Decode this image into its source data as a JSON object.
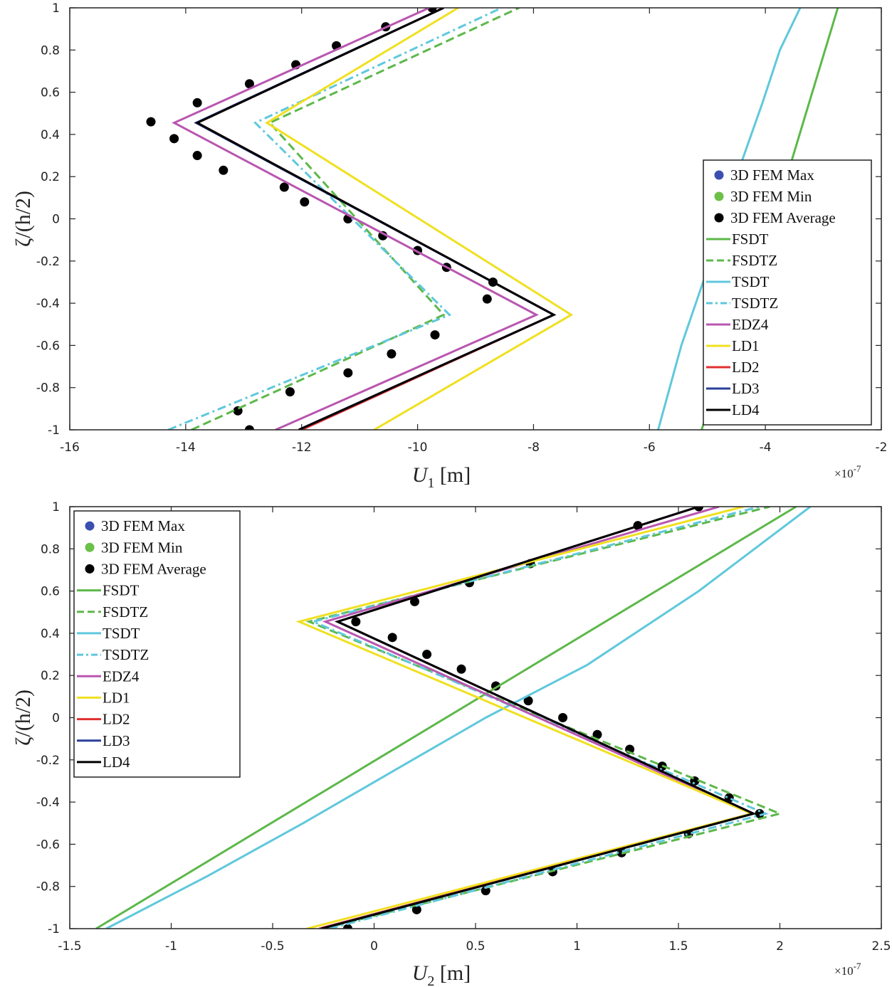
{
  "chart_data": [
    {
      "type": "line",
      "title": "",
      "xlabel": "U",
      "xlabel_sub": "1",
      "xlabel_unit": "[m]",
      "ylabel": "ζ/(h/2)",
      "xlim": [
        -16,
        -2
      ],
      "ylim": [
        -1,
        1
      ],
      "x_ticks": [
        -16,
        -14,
        -12,
        -10,
        -8,
        -6,
        -4,
        -2
      ],
      "y_ticks": [
        -1,
        -0.8,
        -0.6,
        -0.4,
        -0.2,
        0,
        0.2,
        0.4,
        0.6,
        0.8,
        1
      ],
      "x_exponent_base": "×10",
      "x_exponent_power": "-7",
      "legend_position": "right",
      "series": [
        {
          "name": "3D FEM Max",
          "style": "marker",
          "color": "#3a4fb0",
          "x": [],
          "y": []
        },
        {
          "name": "3D FEM Min",
          "style": "marker",
          "color": "#6cc04a",
          "x": [],
          "y": []
        },
        {
          "name": "3D FEM Average",
          "style": "marker",
          "color": "#000000",
          "x": [
            -12.9,
            -13.1,
            -12.2,
            -11.2,
            -10.45,
            -9.7,
            -8.8,
            -8.7,
            -9.5,
            -10.0,
            -10.6,
            -11.2,
            -11.95,
            -12.3,
            -13.35,
            -13.8,
            -14.2,
            -14.6,
            -13.8,
            -12.9,
            -12.1,
            -11.4,
            -10.55,
            -9.75
          ],
          "y": [
            -1,
            -0.91,
            -0.82,
            -0.73,
            -0.64,
            -0.55,
            -0.38,
            -0.3,
            -0.23,
            -0.15,
            -0.08,
            0,
            0.08,
            0.15,
            0.23,
            0.3,
            0.38,
            0.46,
            0.55,
            0.64,
            0.73,
            0.82,
            0.91,
            1
          ]
        },
        {
          "name": "FSDT",
          "style": "solid",
          "color": "#5db84a",
          "x": [
            -5.1,
            -4.5,
            -3.85,
            -3.3,
            -2.75
          ],
          "y": [
            -1,
            -0.5,
            0,
            0.5,
            1
          ]
        },
        {
          "name": "FSDTZ",
          "style": "dash",
          "color": "#5db84a",
          "x": [
            -13.9,
            -9.55,
            -12.55,
            -8.25
          ],
          "y": [
            -1,
            -0.455,
            0.455,
            1
          ]
        },
        {
          "name": "TSDT",
          "style": "solid",
          "color": "#5fc8dc",
          "x": [
            -5.85,
            -5.45,
            -4.95,
            -4.5,
            -4.05,
            -3.75,
            -3.4
          ],
          "y": [
            -1,
            -0.6,
            -0.2,
            0.2,
            0.55,
            0.8,
            1
          ]
        },
        {
          "name": "TSDTZ",
          "style": "dashdot",
          "color": "#5fc8dc",
          "x": [
            -14.3,
            -9.45,
            -12.8,
            -8.55
          ],
          "y": [
            -1,
            -0.455,
            0.455,
            1
          ]
        },
        {
          "name": "EDZ4",
          "style": "solid",
          "color": "#b956b0",
          "x": [
            -12.45,
            -7.95,
            -14.2,
            -9.8
          ],
          "y": [
            -1,
            -0.455,
            0.455,
            1
          ]
        },
        {
          "name": "LD1",
          "style": "solid",
          "color": "#f0e020",
          "x": [
            -10.75,
            -7.35,
            -12.6,
            -9.3
          ],
          "y": [
            -1,
            -0.455,
            0.455,
            1
          ]
        },
        {
          "name": "LD2",
          "style": "solid",
          "color": "#e03030",
          "x": [
            -12.0,
            -7.65,
            -13.8,
            -9.55
          ],
          "y": [
            -1,
            -0.455,
            0.455,
            1
          ]
        },
        {
          "name": "LD3",
          "style": "solid",
          "color": "#2a3f9a",
          "x": [
            -12.05,
            -7.65,
            -13.82,
            -9.55
          ],
          "y": [
            -1,
            -0.455,
            0.455,
            1
          ]
        },
        {
          "name": "LD4",
          "style": "solid",
          "color": "#000000",
          "x": [
            -12.05,
            -7.65,
            -13.8,
            -9.55
          ],
          "y": [
            -1,
            -0.455,
            0.455,
            1
          ]
        }
      ]
    },
    {
      "type": "line",
      "title": "",
      "xlabel": "U",
      "xlabel_sub": "2",
      "xlabel_unit": "[m]",
      "ylabel": "ζ/(h/2)",
      "xlim": [
        -1.5,
        2.5
      ],
      "ylim": [
        -1,
        1
      ],
      "x_ticks": [
        -1.5,
        -1,
        -0.5,
        0,
        0.5,
        1,
        1.5,
        2,
        2.5
      ],
      "y_ticks": [
        -1,
        -0.8,
        -0.6,
        -0.4,
        -0.2,
        0,
        0.2,
        0.4,
        0.6,
        0.8,
        1
      ],
      "x_exponent_base": "×10",
      "x_exponent_power": "-7",
      "legend_position": "top-left",
      "series": [
        {
          "name": "3D FEM Max",
          "style": "marker",
          "color": "#3a4fb0",
          "x": [],
          "y": []
        },
        {
          "name": "3D FEM Min",
          "style": "marker",
          "color": "#6cc04a",
          "x": [],
          "y": []
        },
        {
          "name": "3D FEM Average",
          "style": "marker",
          "color": "#000000",
          "x": [
            -0.13,
            0.21,
            0.55,
            0.88,
            1.22,
            1.55,
            1.9,
            1.75,
            1.58,
            1.42,
            1.26,
            1.1,
            0.93,
            0.76,
            0.6,
            0.43,
            0.26,
            0.09,
            -0.09,
            0.2,
            0.47,
            0.77,
            1.3,
            1.6
          ],
          "y": [
            -1,
            -0.91,
            -0.82,
            -0.73,
            -0.64,
            -0.55,
            -0.455,
            -0.38,
            -0.3,
            -0.23,
            -0.15,
            -0.08,
            0,
            0.08,
            0.15,
            0.23,
            0.3,
            0.38,
            0.455,
            0.55,
            0.64,
            0.73,
            0.91,
            1
          ]
        },
        {
          "name": "FSDT",
          "style": "solid",
          "color": "#5db84a",
          "x": [
            -1.37,
            2.08
          ],
          "y": [
            -1,
            1
          ]
        },
        {
          "name": "FSDTZ",
          "style": "dash",
          "color": "#5db84a",
          "x": [
            -0.25,
            2.0,
            -0.32,
            1.95
          ],
          "y": [
            -1,
            -0.455,
            0.455,
            1
          ]
        },
        {
          "name": "TSDT",
          "style": "solid",
          "color": "#5fc8dc",
          "x": [
            -1.32,
            -0.82,
            -0.35,
            0.1,
            0.55,
            1.05,
            1.6,
            2.15
          ],
          "y": [
            -1,
            -0.75,
            -0.5,
            -0.25,
            0,
            0.25,
            0.6,
            1
          ]
        },
        {
          "name": "TSDTZ",
          "style": "dashdot",
          "color": "#5fc8dc",
          "x": [
            -0.22,
            1.93,
            -0.3,
            1.9
          ],
          "y": [
            -1,
            -0.455,
            0.455,
            1
          ]
        },
        {
          "name": "EDZ4",
          "style": "solid",
          "color": "#b956b0",
          "x": [
            -0.27,
            1.86,
            -0.24,
            1.7
          ],
          "y": [
            -1,
            -0.455,
            0.455,
            1
          ]
        },
        {
          "name": "LD1",
          "style": "solid",
          "color": "#f0e020",
          "x": [
            -0.33,
            1.86,
            -0.37,
            1.82
          ],
          "y": [
            -1,
            -0.455,
            0.455,
            1
          ]
        },
        {
          "name": "LD2",
          "style": "solid",
          "color": "#e03030",
          "x": [
            -0.27,
            1.87,
            -0.18,
            1.6
          ],
          "y": [
            -1,
            -0.455,
            0.455,
            1
          ]
        },
        {
          "name": "LD3",
          "style": "solid",
          "color": "#2a3f9a",
          "x": [
            -0.26,
            1.87,
            -0.18,
            1.6
          ],
          "y": [
            -1,
            -0.455,
            0.455,
            1
          ]
        },
        {
          "name": "LD4",
          "style": "solid",
          "color": "#000000",
          "x": [
            -0.26,
            1.87,
            -0.18,
            1.6
          ],
          "y": [
            -1,
            -0.455,
            0.455,
            1
          ]
        }
      ]
    }
  ]
}
